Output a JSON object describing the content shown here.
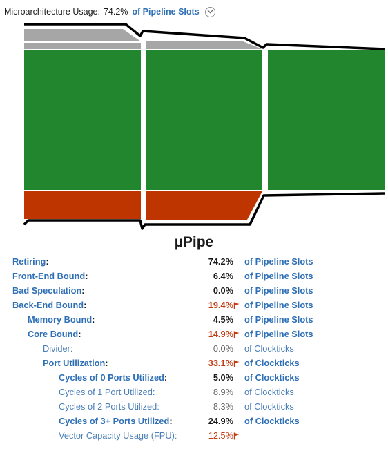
{
  "header": {
    "label": "Microarchitecture Usage:",
    "value": "74.2%",
    "unit": "of Pipeline Slots"
  },
  "pipe": {
    "title": "µPipe",
    "colors": {
      "retiring": "#22862f",
      "backend": "#bf3500",
      "bad_speculation": "#a6a6a6",
      "frontend": "#a6a6a6",
      "outline": "#000000"
    }
  },
  "metrics": [
    {
      "name": "Retiring",
      "suffix": ":",
      "value": "74.2%",
      "flag": false,
      "unit": "of Pipeline Slots",
      "level": 1,
      "style": "link-bold",
      "value_style": "bold"
    },
    {
      "name": "Front-End Bound",
      "suffix": ":",
      "value": "6.4%",
      "flag": false,
      "unit": "of Pipeline Slots",
      "level": 1,
      "style": "link-bold",
      "value_style": "bold"
    },
    {
      "name": "Bad Speculation",
      "suffix": ":",
      "value": "0.0%",
      "flag": false,
      "unit": "of Pipeline Slots",
      "level": 1,
      "style": "link-bold",
      "value_style": "bold"
    },
    {
      "name": "Back-End Bound",
      "suffix": ":",
      "value": "19.4%",
      "flag": true,
      "unit": "of Pipeline Slots",
      "level": 1,
      "style": "link-bold",
      "value_style": "warn"
    },
    {
      "name": "Memory Bound",
      "suffix": ":",
      "value": "4.5%",
      "flag": false,
      "unit": "of Pipeline Slots",
      "level": 2,
      "style": "link-bold",
      "value_style": "bold"
    },
    {
      "name": "Core Bound",
      "suffix": ":",
      "value": "14.9%",
      "flag": true,
      "unit": "of Pipeline Slots",
      "level": 2,
      "style": "link-bold",
      "value_style": "warn"
    },
    {
      "name": "Divider",
      "suffix": ":",
      "value": "0.0%",
      "flag": false,
      "unit": "of Clockticks",
      "level": 3,
      "style": "light",
      "value_style": "light"
    },
    {
      "name": "Port Utilization",
      "suffix": ":",
      "value": "33.1%",
      "flag": true,
      "unit": "of Clockticks",
      "level": 3,
      "style": "link-bold",
      "value_style": "warn"
    },
    {
      "name": "Cycles of 0 Ports Utilized",
      "suffix": ":",
      "value": "5.0%",
      "flag": false,
      "unit": "of Clockticks",
      "level": 4,
      "style": "link-bold",
      "value_style": "bold"
    },
    {
      "name": "Cycles of 1 Port Utilized",
      "suffix": ":",
      "value": "8.9%",
      "flag": false,
      "unit": "of Clockticks",
      "level": 4,
      "style": "light",
      "value_style": "light"
    },
    {
      "name": "Cycles of 2 Ports Utilized",
      "suffix": ":",
      "value": "8.3%",
      "flag": false,
      "unit": "of Clockticks",
      "level": 4,
      "style": "light",
      "value_style": "light"
    },
    {
      "name": "Cycles of 3+ Ports Utilized",
      "suffix": ":",
      "value": "24.9%",
      "flag": false,
      "unit": "of Clockticks",
      "level": 4,
      "style": "link-bold",
      "value_style": "bold"
    },
    {
      "name": "Vector Capacity Usage (FPU)",
      "suffix": ":",
      "value": "12.5%",
      "flag": true,
      "unit": "",
      "level": 4,
      "style": "light",
      "value_style": "warn-light"
    }
  ]
}
